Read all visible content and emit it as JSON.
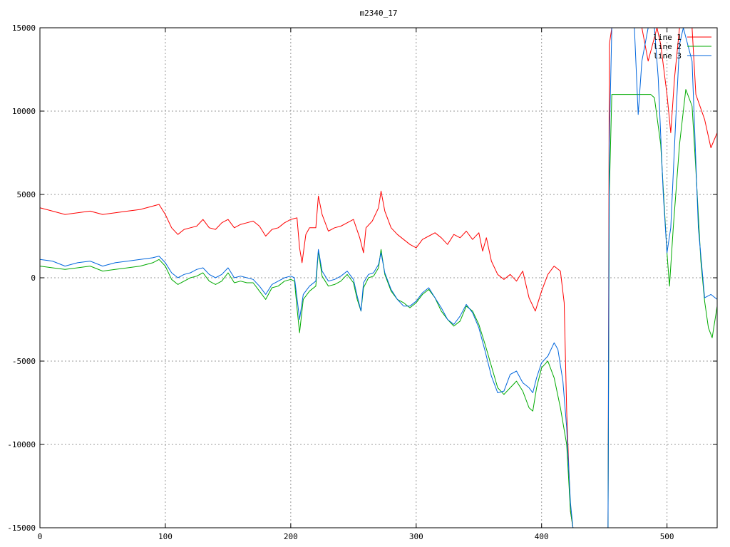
{
  "chart_data": {
    "type": "line",
    "title": "m2340_17",
    "xlabel": "",
    "ylabel": "",
    "xlim": [
      0,
      540
    ],
    "ylim": [
      -15000,
      15000
    ],
    "x_ticks": [
      0,
      100,
      200,
      300,
      400,
      500
    ],
    "y_ticks": [
      -15000,
      -10000,
      -5000,
      0,
      5000,
      10000,
      15000
    ],
    "grid": true,
    "legend_position": "top-right",
    "series": [
      {
        "name": "line 1",
        "color": "#ff0000",
        "points": [
          [
            0,
            4200
          ],
          [
            10,
            4000
          ],
          [
            20,
            3800
          ],
          [
            30,
            3900
          ],
          [
            40,
            4000
          ],
          [
            50,
            3800
          ],
          [
            60,
            3900
          ],
          [
            70,
            4000
          ],
          [
            80,
            4100
          ],
          [
            90,
            4300
          ],
          [
            95,
            4400
          ],
          [
            100,
            3800
          ],
          [
            105,
            3000
          ],
          [
            110,
            2600
          ],
          [
            115,
            2900
          ],
          [
            120,
            3000
          ],
          [
            125,
            3100
          ],
          [
            130,
            3500
          ],
          [
            135,
            3000
          ],
          [
            140,
            2900
          ],
          [
            145,
            3300
          ],
          [
            150,
            3500
          ],
          [
            155,
            3000
          ],
          [
            160,
            3200
          ],
          [
            165,
            3300
          ],
          [
            170,
            3400
          ],
          [
            175,
            3100
          ],
          [
            180,
            2500
          ],
          [
            185,
            2900
          ],
          [
            190,
            3000
          ],
          [
            195,
            3300
          ],
          [
            200,
            3500
          ],
          [
            205,
            3600
          ],
          [
            207,
            1800
          ],
          [
            209,
            900
          ],
          [
            212,
            2600
          ],
          [
            215,
            3000
          ],
          [
            220,
            3000
          ],
          [
            222,
            4900
          ],
          [
            225,
            3800
          ],
          [
            230,
            2800
          ],
          [
            235,
            3000
          ],
          [
            240,
            3100
          ],
          [
            245,
            3300
          ],
          [
            250,
            3500
          ],
          [
            255,
            2400
          ],
          [
            258,
            1500
          ],
          [
            260,
            3000
          ],
          [
            265,
            3400
          ],
          [
            270,
            4200
          ],
          [
            272,
            5200
          ],
          [
            275,
            4000
          ],
          [
            280,
            3000
          ],
          [
            285,
            2600
          ],
          [
            290,
            2300
          ],
          [
            295,
            2000
          ],
          [
            300,
            1800
          ],
          [
            305,
            2300
          ],
          [
            310,
            2500
          ],
          [
            315,
            2700
          ],
          [
            320,
            2400
          ],
          [
            325,
            2000
          ],
          [
            330,
            2600
          ],
          [
            335,
            2400
          ],
          [
            340,
            2800
          ],
          [
            345,
            2300
          ],
          [
            350,
            2700
          ],
          [
            353,
            1600
          ],
          [
            356,
            2400
          ],
          [
            360,
            1000
          ],
          [
            365,
            200
          ],
          [
            370,
            -100
          ],
          [
            375,
            200
          ],
          [
            380,
            -200
          ],
          [
            385,
            400
          ],
          [
            390,
            -1200
          ],
          [
            395,
            -2000
          ],
          [
            400,
            -800
          ],
          [
            405,
            200
          ],
          [
            410,
            700
          ],
          [
            415,
            400
          ],
          [
            418,
            -1500
          ],
          [
            420,
            -8000
          ],
          [
            423,
            -14000
          ],
          [
            425,
            -15000
          ],
          [
            453,
            -15000
          ],
          [
            454,
            14000
          ],
          [
            456,
            15000
          ],
          [
            480,
            15000
          ],
          [
            485,
            13000
          ],
          [
            492,
            15000
          ],
          [
            495,
            14000
          ],
          [
            500,
            11000
          ],
          [
            503,
            8700
          ],
          [
            506,
            12000
          ],
          [
            510,
            15000
          ],
          [
            520,
            15000
          ],
          [
            523,
            11000
          ],
          [
            530,
            9500
          ],
          [
            535,
            7800
          ],
          [
            540,
            8700
          ]
        ]
      },
      {
        "name": "line 2",
        "color": "#00aa00",
        "points": [
          [
            0,
            700
          ],
          [
            10,
            600
          ],
          [
            20,
            500
          ],
          [
            30,
            600
          ],
          [
            40,
            700
          ],
          [
            50,
            400
          ],
          [
            60,
            500
          ],
          [
            70,
            600
          ],
          [
            80,
            700
          ],
          [
            90,
            900
          ],
          [
            95,
            1100
          ],
          [
            100,
            700
          ],
          [
            105,
            -100
          ],
          [
            110,
            -400
          ],
          [
            115,
            -200
          ],
          [
            120,
            0
          ],
          [
            125,
            100
          ],
          [
            130,
            300
          ],
          [
            135,
            -200
          ],
          [
            140,
            -400
          ],
          [
            145,
            -200
          ],
          [
            150,
            300
          ],
          [
            155,
            -300
          ],
          [
            160,
            -200
          ],
          [
            165,
            -300
          ],
          [
            170,
            -300
          ],
          [
            175,
            -800
          ],
          [
            180,
            -1300
          ],
          [
            185,
            -600
          ],
          [
            190,
            -500
          ],
          [
            195,
            -200
          ],
          [
            200,
            -100
          ],
          [
            203,
            -200
          ],
          [
            205,
            -1800
          ],
          [
            207,
            -3300
          ],
          [
            210,
            -1300
          ],
          [
            215,
            -800
          ],
          [
            220,
            -500
          ],
          [
            222,
            1600
          ],
          [
            225,
            100
          ],
          [
            230,
            -500
          ],
          [
            235,
            -400
          ],
          [
            240,
            -200
          ],
          [
            245,
            200
          ],
          [
            250,
            -300
          ],
          [
            253,
            -1300
          ],
          [
            256,
            -2000
          ],
          [
            258,
            -600
          ],
          [
            262,
            0
          ],
          [
            266,
            100
          ],
          [
            270,
            600
          ],
          [
            272,
            1700
          ],
          [
            275,
            200
          ],
          [
            280,
            -800
          ],
          [
            285,
            -1300
          ],
          [
            290,
            -1500
          ],
          [
            295,
            -1800
          ],
          [
            300,
            -1500
          ],
          [
            305,
            -1000
          ],
          [
            310,
            -700
          ],
          [
            315,
            -1200
          ],
          [
            320,
            -2000
          ],
          [
            325,
            -2500
          ],
          [
            330,
            -2900
          ],
          [
            335,
            -2600
          ],
          [
            340,
            -1700
          ],
          [
            345,
            -2000
          ],
          [
            350,
            -2800
          ],
          [
            355,
            -4000
          ],
          [
            360,
            -5300
          ],
          [
            365,
            -6600
          ],
          [
            370,
            -7000
          ],
          [
            375,
            -6600
          ],
          [
            380,
            -6200
          ],
          [
            385,
            -6800
          ],
          [
            390,
            -7800
          ],
          [
            393,
            -8000
          ],
          [
            396,
            -6600
          ],
          [
            400,
            -5400
          ],
          [
            405,
            -5000
          ],
          [
            410,
            -6000
          ],
          [
            415,
            -7800
          ],
          [
            420,
            -10000
          ],
          [
            423,
            -14000
          ],
          [
            425,
            -15000
          ],
          [
            453,
            -15000
          ],
          [
            454,
            5000
          ],
          [
            456,
            11000
          ],
          [
            465,
            11000
          ],
          [
            475,
            11000
          ],
          [
            480,
            11000
          ],
          [
            487,
            11000
          ],
          [
            490,
            10800
          ],
          [
            495,
            8000
          ],
          [
            500,
            1500
          ],
          [
            502,
            -500
          ],
          [
            505,
            3000
          ],
          [
            510,
            8000
          ],
          [
            513,
            10000
          ],
          [
            515,
            11300
          ],
          [
            520,
            10300
          ],
          [
            523,
            6500
          ],
          [
            527,
            1000
          ],
          [
            530,
            -1400
          ],
          [
            533,
            -3000
          ],
          [
            536,
            -3600
          ],
          [
            540,
            -1700
          ]
        ]
      },
      {
        "name": "line 3",
        "color": "#0066dd",
        "points": [
          [
            0,
            1100
          ],
          [
            10,
            1000
          ],
          [
            20,
            700
          ],
          [
            30,
            900
          ],
          [
            40,
            1000
          ],
          [
            50,
            700
          ],
          [
            60,
            900
          ],
          [
            70,
            1000
          ],
          [
            80,
            1100
          ],
          [
            90,
            1200
          ],
          [
            95,
            1300
          ],
          [
            100,
            900
          ],
          [
            105,
            300
          ],
          [
            110,
            0
          ],
          [
            115,
            200
          ],
          [
            120,
            300
          ],
          [
            125,
            500
          ],
          [
            130,
            600
          ],
          [
            135,
            200
          ],
          [
            140,
            0
          ],
          [
            145,
            200
          ],
          [
            150,
            600
          ],
          [
            155,
            0
          ],
          [
            160,
            100
          ],
          [
            165,
            0
          ],
          [
            170,
            -100
          ],
          [
            175,
            -500
          ],
          [
            180,
            -1000
          ],
          [
            185,
            -400
          ],
          [
            190,
            -200
          ],
          [
            195,
            0
          ],
          [
            200,
            100
          ],
          [
            203,
            0
          ],
          [
            205,
            -1200
          ],
          [
            207,
            -2500
          ],
          [
            210,
            -1000
          ],
          [
            215,
            -500
          ],
          [
            220,
            -200
          ],
          [
            222,
            1700
          ],
          [
            225,
            400
          ],
          [
            230,
            -200
          ],
          [
            235,
            -100
          ],
          [
            240,
            100
          ],
          [
            245,
            400
          ],
          [
            250,
            -100
          ],
          [
            253,
            -1100
          ],
          [
            256,
            -2000
          ],
          [
            258,
            -300
          ],
          [
            262,
            200
          ],
          [
            266,
            300
          ],
          [
            270,
            800
          ],
          [
            272,
            1500
          ],
          [
            275,
            300
          ],
          [
            280,
            -700
          ],
          [
            285,
            -1300
          ],
          [
            290,
            -1700
          ],
          [
            295,
            -1700
          ],
          [
            300,
            -1400
          ],
          [
            305,
            -900
          ],
          [
            310,
            -600
          ],
          [
            315,
            -1200
          ],
          [
            320,
            -1800
          ],
          [
            325,
            -2500
          ],
          [
            330,
            -2800
          ],
          [
            335,
            -2300
          ],
          [
            340,
            -1600
          ],
          [
            345,
            -2100
          ],
          [
            350,
            -3000
          ],
          [
            355,
            -4400
          ],
          [
            360,
            -5900
          ],
          [
            365,
            -6900
          ],
          [
            370,
            -6800
          ],
          [
            375,
            -5800
          ],
          [
            380,
            -5600
          ],
          [
            385,
            -6300
          ],
          [
            390,
            -6600
          ],
          [
            393,
            -6900
          ],
          [
            396,
            -6000
          ],
          [
            400,
            -5100
          ],
          [
            405,
            -4700
          ],
          [
            410,
            -3900
          ],
          [
            413,
            -4300
          ],
          [
            417,
            -6200
          ],
          [
            420,
            -9000
          ],
          [
            423,
            -13500
          ],
          [
            425,
            -15000
          ],
          [
            453,
            -15000
          ],
          [
            454,
            8000
          ],
          [
            456,
            15000
          ],
          [
            470,
            15000
          ],
          [
            474,
            15000
          ],
          [
            477,
            9800
          ],
          [
            480,
            13000
          ],
          [
            485,
            15000
          ],
          [
            490,
            15000
          ],
          [
            493,
            12000
          ],
          [
            497,
            5000
          ],
          [
            500,
            1500
          ],
          [
            503,
            3000
          ],
          [
            507,
            9500
          ],
          [
            510,
            14000
          ],
          [
            513,
            15000
          ],
          [
            520,
            13000
          ],
          [
            525,
            3000
          ],
          [
            530,
            -1200
          ],
          [
            535,
            -1000
          ],
          [
            540,
            -1300
          ]
        ]
      }
    ]
  }
}
